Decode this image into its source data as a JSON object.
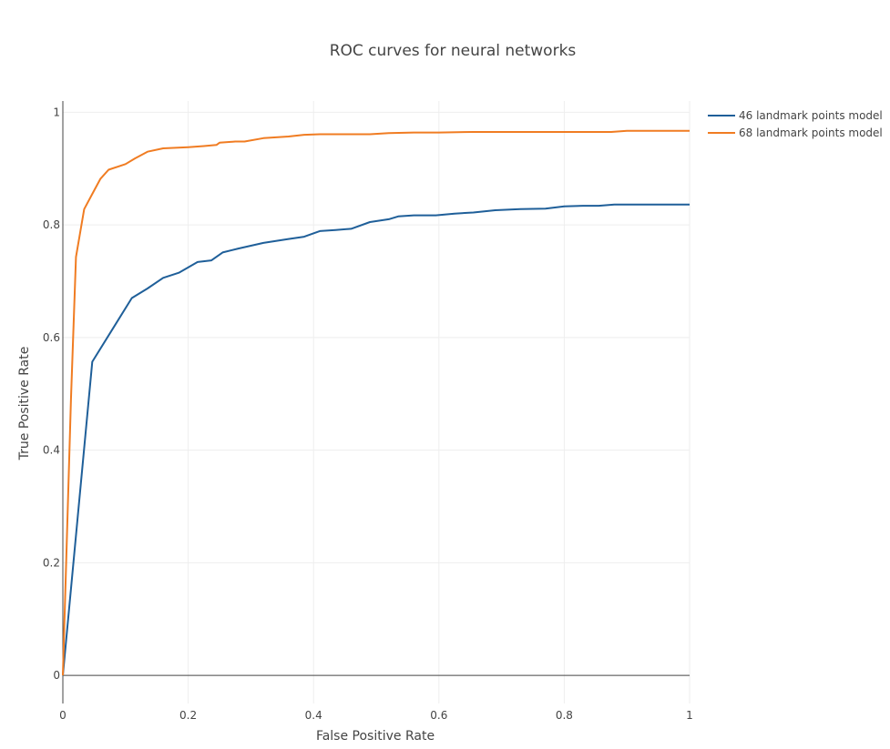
{
  "chart_data": {
    "type": "line",
    "title": "ROC curves for neural networks",
    "xlabel": "False Positive Rate",
    "ylabel": "True Positive Rate",
    "xlim": [
      0,
      1
    ],
    "ylim": [
      -0.05,
      1.02
    ],
    "xticks": [
      0,
      0.2,
      0.4,
      0.6,
      0.8,
      1
    ],
    "xtick_labels": [
      "0",
      "0.2",
      "0.4",
      "0.6",
      "0.8",
      "1"
    ],
    "yticks": [
      0,
      0.2,
      0.4,
      0.6,
      0.8,
      1
    ],
    "ytick_labels": [
      "0",
      "0.2",
      "0.4",
      "0.6",
      "0.8",
      "1"
    ],
    "grid": true,
    "legend_position": "top-right",
    "series": [
      {
        "name": "46 landmark points model",
        "color": "#1f5f99",
        "x": [
          0,
          0.047,
          0.11,
          0.135,
          0.16,
          0.185,
          0.215,
          0.237,
          0.255,
          0.28,
          0.32,
          0.36,
          0.385,
          0.41,
          0.435,
          0.46,
          0.49,
          0.52,
          0.535,
          0.56,
          0.595,
          0.625,
          0.655,
          0.69,
          0.73,
          0.77,
          0.8,
          0.83,
          0.855,
          0.88,
          0.92,
          1.0
        ],
        "y": [
          0,
          0.557,
          0.67,
          0.687,
          0.706,
          0.715,
          0.734,
          0.737,
          0.751,
          0.758,
          0.768,
          0.775,
          0.779,
          0.789,
          0.791,
          0.793,
          0.805,
          0.81,
          0.815,
          0.817,
          0.817,
          0.82,
          0.822,
          0.826,
          0.828,
          0.829,
          0.833,
          0.834,
          0.834,
          0.836,
          0.836,
          0.836
        ]
      },
      {
        "name": "68 landmark points model",
        "color": "#f07c22",
        "x": [
          0,
          0.013,
          0.021,
          0.034,
          0.047,
          0.06,
          0.073,
          0.1,
          0.115,
          0.135,
          0.16,
          0.18,
          0.2,
          0.225,
          0.245,
          0.25,
          0.275,
          0.29,
          0.32,
          0.36,
          0.385,
          0.41,
          0.45,
          0.49,
          0.52,
          0.56,
          0.6,
          0.655,
          0.7,
          0.8,
          0.875,
          0.9,
          1.0
        ],
        "y": [
          0,
          0.49,
          0.743,
          0.828,
          0.855,
          0.882,
          0.898,
          0.908,
          0.918,
          0.93,
          0.936,
          0.937,
          0.938,
          0.94,
          0.942,
          0.946,
          0.948,
          0.948,
          0.954,
          0.957,
          0.96,
          0.961,
          0.961,
          0.961,
          0.963,
          0.964,
          0.964,
          0.965,
          0.965,
          0.965,
          0.965,
          0.967,
          0.967
        ]
      }
    ]
  }
}
